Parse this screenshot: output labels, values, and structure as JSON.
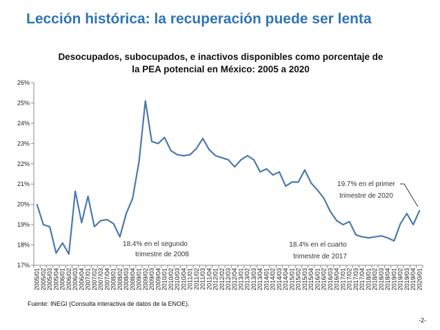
{
  "slide_title": "Lección histórica: la recuperación puede ser lenta",
  "source": "Fuente: INEGI (Consulta interactiva de datos de la ENOE).",
  "page_number": "-2-",
  "series_color": "#4a79ad",
  "chart_data": {
    "type": "line",
    "title_line1": "Desocupados, subocupados, e inactivos disponibles como porcentaje de",
    "title_line2": "la PEA potencial en México: 2005 a 2020",
    "xlabel": "",
    "ylabel": "",
    "ylim": [
      17,
      26
    ],
    "yticks": [
      "17%",
      "18%",
      "19%",
      "20%",
      "21%",
      "22%",
      "23%",
      "24%",
      "25%",
      "26%"
    ],
    "grid": false,
    "categories": [
      "2005/01",
      "2005/02",
      "2005/03",
      "2005/04",
      "2006/01",
      "2006/02",
      "2006/03",
      "2006/04",
      "2007/01",
      "2007/02",
      "2007/03",
      "2007/04",
      "2008/01",
      "2008/02",
      "2008/03",
      "2008/04",
      "2009/01",
      "2009/02",
      "2009/03",
      "2009/04",
      "2010/01",
      "2010/02",
      "2010/03",
      "2010/04",
      "2011/01",
      "2011/02",
      "2011/03",
      "2011/04",
      "2012/01",
      "2012/02",
      "2012/03",
      "2012/04",
      "2013/01",
      "2013/02",
      "2013/03",
      "2013/04",
      "2014/01",
      "2014/02",
      "2014/03",
      "2014/04",
      "2015/01",
      "2015/02",
      "2015/03",
      "2015/04",
      "2016/01",
      "2016/02",
      "2016/03",
      "2016/04",
      "2017/01",
      "2017/02",
      "2017/03",
      "2017/04",
      "2018/01",
      "2018/02",
      "2018/03",
      "2018/04",
      "2019/01",
      "2019/02",
      "2019/03",
      "2019/04",
      "2020/01"
    ],
    "values": [
      20.0,
      19.0,
      18.9,
      17.6,
      18.1,
      17.55,
      20.65,
      19.1,
      20.4,
      18.9,
      19.2,
      19.25,
      19.05,
      18.4,
      19.55,
      20.3,
      22.1,
      25.1,
      23.1,
      23.0,
      23.3,
      22.65,
      22.45,
      22.4,
      22.45,
      22.75,
      23.25,
      22.7,
      22.4,
      22.3,
      22.2,
      21.85,
      22.2,
      22.4,
      22.2,
      21.6,
      21.75,
      21.45,
      21.6,
      20.9,
      21.1,
      21.1,
      21.7,
      21.05,
      20.7,
      20.3,
      19.65,
      19.2,
      19.0,
      19.15,
      18.5,
      18.4,
      18.35,
      18.4,
      18.45,
      18.35,
      18.2,
      19.05,
      19.55,
      19.0,
      19.7
    ],
    "annotations": [
      {
        "line1": "18.4% en el segundo",
        "line2": "trimestre de 2008"
      },
      {
        "line1": "18.4% en el cuarto",
        "line2": "trimestre de 2017"
      },
      {
        "line1": "19.7% en el primer",
        "line2": "trimestre de 2020"
      }
    ]
  }
}
